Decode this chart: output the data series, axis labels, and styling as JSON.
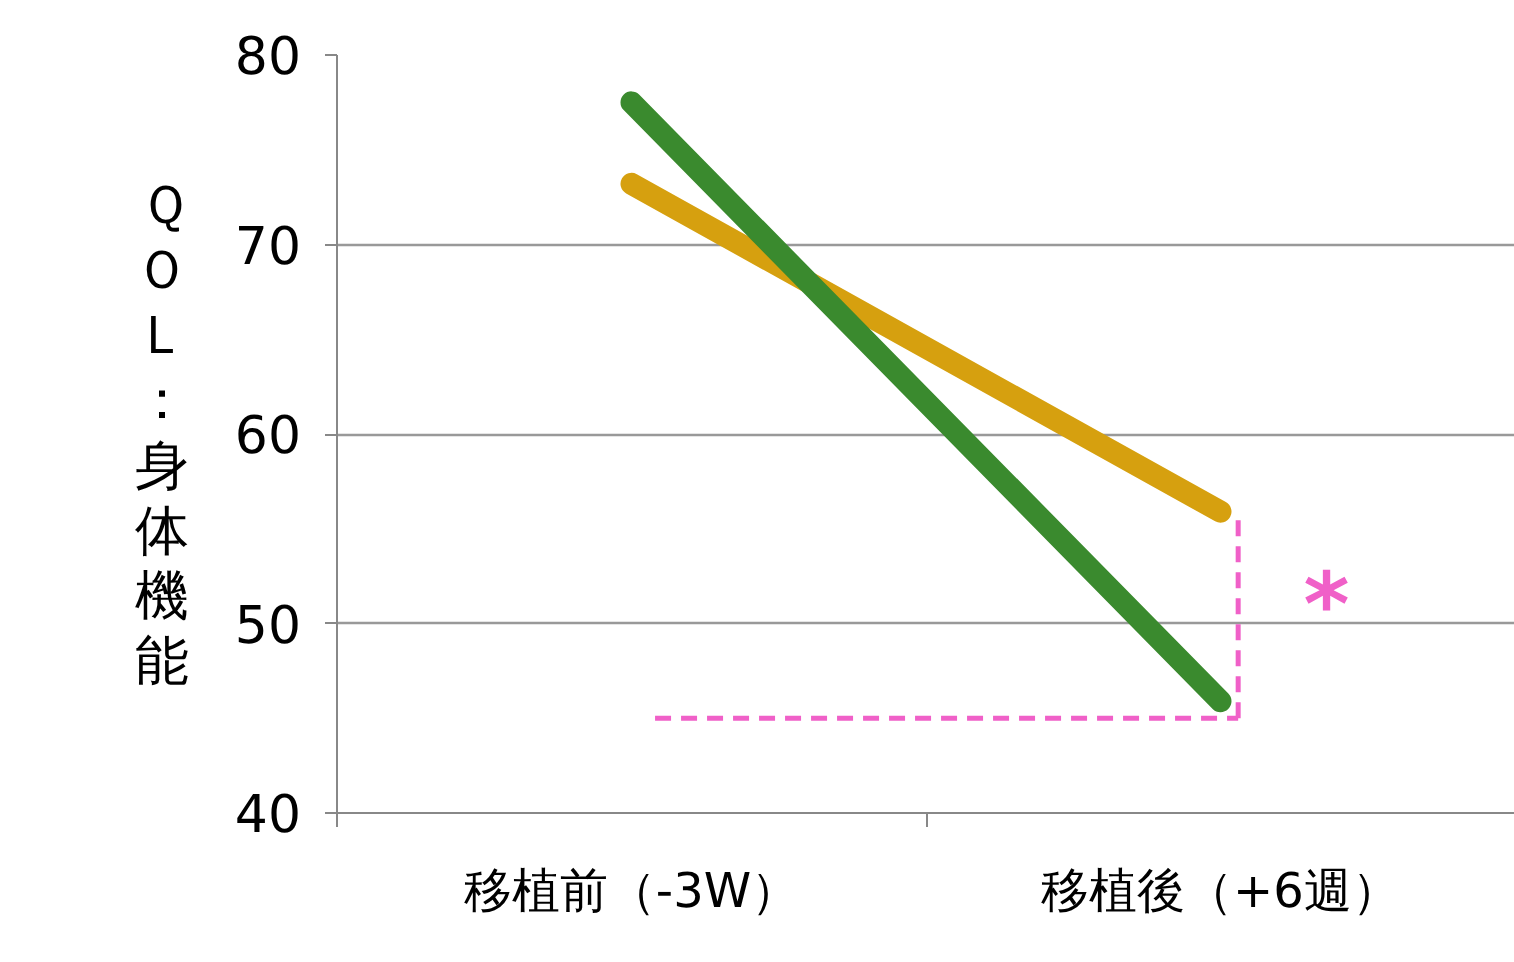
{
  "chart_data": {
    "type": "line",
    "ylabel": "ＱＯＬ：身体機能",
    "categories": [
      "移植前（-3W）",
      "移植後（+6週）"
    ],
    "series": [
      {
        "color": "#d6a00f",
        "values": [
          73.2,
          55.9
        ]
      },
      {
        "color": "#3a8a2e",
        "values": [
          77.5,
          45.9
        ]
      }
    ],
    "ylim": [
      40,
      80
    ],
    "yticks": [
      40,
      50,
      60,
      70,
      80
    ],
    "grid": "y",
    "annotations": [
      "*"
    ]
  }
}
